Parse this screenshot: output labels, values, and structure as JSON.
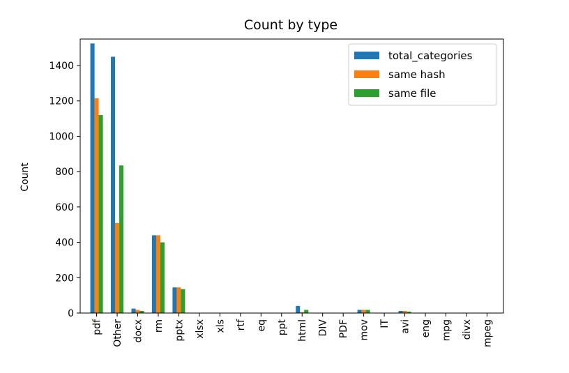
{
  "chart_data": {
    "type": "bar",
    "title": "Count by type",
    "xlabel": "",
    "ylabel": "Count",
    "ylim": [
      0,
      1550
    ],
    "yticks": [
      0,
      200,
      400,
      600,
      800,
      1000,
      1200,
      1400
    ],
    "grid": false,
    "legend_position": "top-right",
    "categories": [
      "pdf",
      "Other",
      "docx",
      "rm",
      "pptx",
      "xlsx",
      "xls",
      "rtf",
      "eq",
      "ppt",
      "html",
      "DIV",
      "PDF",
      "mov",
      "IT",
      "avi",
      "eng",
      "mpg",
      "divx",
      "mpeg"
    ],
    "series": [
      {
        "name": "total_categories",
        "color": "#1f77b4",
        "values": [
          1525,
          1450,
          25,
          440,
          145,
          2,
          2,
          1,
          1,
          1,
          40,
          1,
          1,
          18,
          1,
          12,
          1,
          1,
          1,
          1
        ]
      },
      {
        "name": "same hash",
        "color": "#ff7f0e",
        "values": [
          1215,
          510,
          18,
          440,
          145,
          1,
          1,
          1,
          1,
          1,
          5,
          1,
          1,
          18,
          1,
          12,
          1,
          1,
          1,
          1
        ]
      },
      {
        "name": "same file",
        "color": "#2ca02c",
        "values": [
          1120,
          835,
          12,
          400,
          135,
          1,
          1,
          1,
          1,
          1,
          18,
          1,
          1,
          18,
          1,
          8,
          1,
          1,
          1,
          1
        ]
      }
    ]
  }
}
